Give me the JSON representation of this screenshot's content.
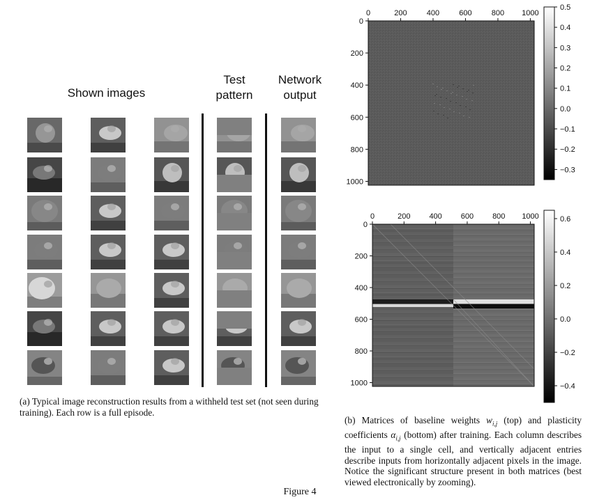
{
  "panel_a": {
    "headers": {
      "shown": "Shown images",
      "test_line1": "Test",
      "test_line2": "pattern",
      "net_line1": "Network",
      "net_line2": "output"
    },
    "caption": "(a) Typical image reconstruction results from a withheld test set (not seen during training). Each row is a full episode.",
    "rows": [
      {
        "subjects": [
          "parrot",
          "bird",
          "cat-face"
        ],
        "test_mask": "top",
        "output": "cat-face"
      },
      {
        "subjects": [
          "horse",
          "dog",
          "car"
        ],
        "test_mask": "bottom",
        "output": "car"
      },
      {
        "subjects": [
          "frog",
          "bird",
          "dog"
        ],
        "test_mask": "bottom",
        "output": "frog"
      },
      {
        "subjects": [
          "dog",
          "bird",
          "cat"
        ],
        "test_mask": "bottom",
        "output": "dog"
      },
      {
        "subjects": [
          "airplane",
          "deer",
          "cat"
        ],
        "test_mask": "bottom",
        "output": "deer"
      },
      {
        "subjects": [
          "horse",
          "cat",
          "cat"
        ],
        "test_mask": "top",
        "output": "cat"
      },
      {
        "subjects": [
          "ship",
          "dog",
          "bird"
        ],
        "test_mask": "bottom",
        "output": "ship"
      }
    ]
  },
  "panel_b": {
    "caption": "(b) Matrices of baseline weights w_{i,j} (top) and plasticity coefficients α_{i,j} (bottom) after training. Each column describes the input to a single cell, and vertically adjacent entries describe inputs from horizontally adjacent pixels in the image. Notice the significant structure present in both matrices (best viewed electronically by zooming).",
    "caption_parts": {
      "p1": "(b) Matrices of baseline weights ",
      "w_sym": "w",
      "w_sub": "i,j",
      "p2": " (top) and plasticity coefficients ",
      "a_sym": "α",
      "a_sub": "i,j",
      "p3": " (bottom) after training. Each column describes the input to a single cell, and vertically adjacent entries describe inputs from horizontally adjacent pixels in the image. Notice the significant structure present in both matrices (best viewed electronically by zooming)."
    }
  },
  "figure_label": "Figure 4",
  "chart_data": [
    {
      "type": "heatmap",
      "title": "",
      "x_ticks": [
        0,
        200,
        400,
        600,
        800,
        1000
      ],
      "y_ticks": [
        0,
        200,
        400,
        600,
        800,
        1000
      ],
      "xlim": [
        0,
        1024
      ],
      "ylim": [
        1024,
        0
      ],
      "colorbar_ticks": [
        "0.5",
        "0.4",
        "0.3",
        "0.2",
        "0.1",
        "0.0",
        "−0.1",
        "−0.2",
        "−0.3"
      ],
      "colorbar_range": [
        -0.35,
        0.5
      ],
      "colormap": "gray"
    },
    {
      "type": "heatmap",
      "title": "",
      "x_ticks": [
        0,
        200,
        400,
        600,
        800,
        1000
      ],
      "y_ticks": [
        0,
        200,
        400,
        600,
        800,
        1000
      ],
      "xlim": [
        0,
        1024
      ],
      "ylim": [
        1024,
        0
      ],
      "colorbar_ticks": [
        "0.6",
        "0.4",
        "0.2",
        "0.0",
        "−0.2",
        "−0.4"
      ],
      "colorbar_range": [
        -0.5,
        0.65
      ],
      "colormap": "gray"
    }
  ]
}
